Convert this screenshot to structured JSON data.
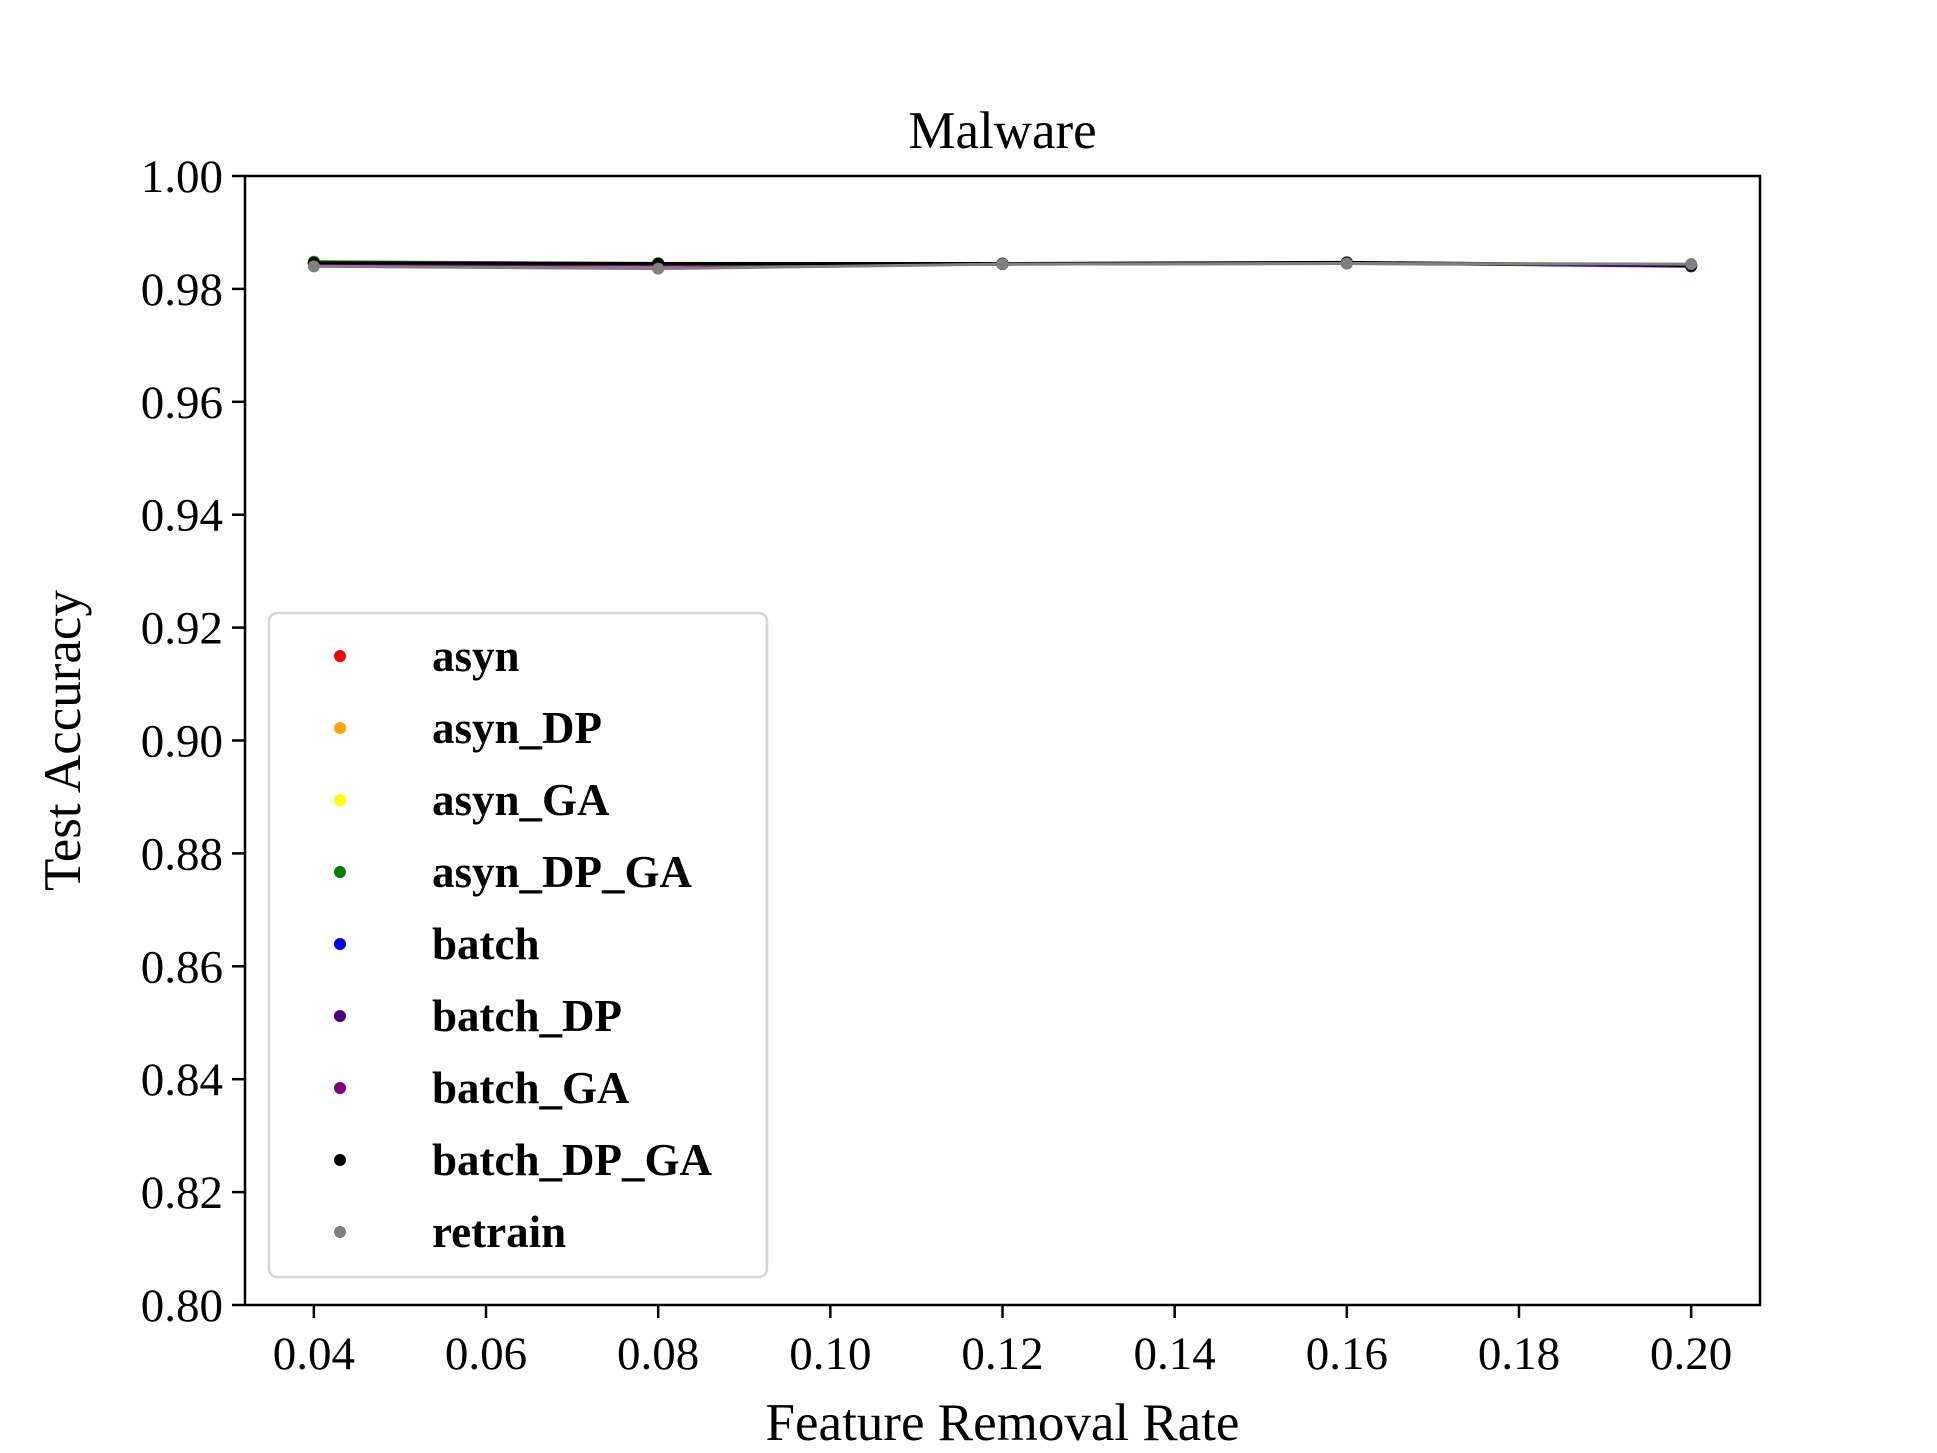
{
  "chart_data": {
    "type": "line",
    "title": "Malware",
    "xlabel": "Feature Removal Rate",
    "ylabel": "Test Accuracy",
    "xlim": [
      0.032,
      0.208
    ],
    "ylim": [
      0.8,
      1.0
    ],
    "xticks": [
      "0.04",
      "0.06",
      "0.08",
      "0.10",
      "0.12",
      "0.14",
      "0.16",
      "0.18",
      "0.20"
    ],
    "yticks": [
      "0.80",
      "0.82",
      "0.84",
      "0.86",
      "0.88",
      "0.90",
      "0.92",
      "0.94",
      "0.96",
      "0.98",
      "1.00"
    ],
    "grid": false,
    "legend_position": "lower-left",
    "x": [
      0.04,
      0.08,
      0.12,
      0.16,
      0.2
    ],
    "series": [
      {
        "name": "asyn",
        "color": "#ff0000",
        "values": [
          0.9845,
          0.9843,
          0.9844,
          0.9846,
          0.9842
        ]
      },
      {
        "name": "asyn_DP",
        "color": "#ffa500",
        "values": [
          0.9846,
          0.9845,
          0.9844,
          0.9846,
          0.9843
        ]
      },
      {
        "name": "asyn_GA",
        "color": "#ffff00",
        "values": [
          0.9846,
          0.9846,
          0.9844,
          0.9846,
          0.9843
        ]
      },
      {
        "name": "asyn_DP_GA",
        "color": "#008000",
        "values": [
          0.9848,
          0.9845,
          0.9844,
          0.9846,
          0.9842
        ]
      },
      {
        "name": "batch",
        "color": "#0000ff",
        "values": [
          0.9845,
          0.9843,
          0.9844,
          0.9846,
          0.984
        ]
      },
      {
        "name": "batch_DP",
        "color": "#4b0082",
        "values": [
          0.9845,
          0.9843,
          0.9844,
          0.9846,
          0.9841
        ]
      },
      {
        "name": "batch_GA",
        "color": "#800080",
        "values": [
          0.9844,
          0.9842,
          0.9844,
          0.9845,
          0.9842
        ]
      },
      {
        "name": "batch_DP_GA",
        "color": "#000000",
        "values": [
          0.9846,
          0.9845,
          0.9845,
          0.9847,
          0.9842
        ]
      },
      {
        "name": "retrain",
        "color": "#808080",
        "values": [
          0.984,
          0.9836,
          0.9844,
          0.9845,
          0.9844
        ]
      }
    ]
  }
}
